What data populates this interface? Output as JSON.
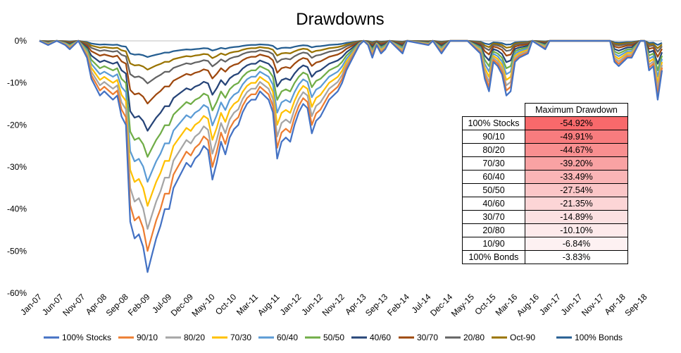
{
  "chart_data": {
    "type": "line",
    "title": "Drawdowns",
    "xlabel": "",
    "ylabel": "",
    "x_tick_labels": [
      "Jan-07",
      "Jun-07",
      "Nov-07",
      "Apr-08",
      "Sep-08",
      "Feb-09",
      "Jul-09",
      "Dec-09",
      "May-10",
      "Oct-10",
      "Mar-11",
      "Aug-11",
      "Jan-12",
      "Jun-12",
      "Nov-12",
      "Apr-13",
      "Sep-13",
      "Feb-14",
      "Jul-14",
      "Dec-14",
      "May-15",
      "Oct-15",
      "Mar-16",
      "Aug-16",
      "Jan-17",
      "Jun-17",
      "Nov-17",
      "Apr-18",
      "Sep-18"
    ],
    "y_tick_labels": [
      "0%",
      "-10%",
      "-20%",
      "-30%",
      "-40%",
      "-50%",
      "-60%"
    ],
    "ylim": [
      -60,
      0
    ],
    "legend_position": "bottom",
    "colors": [
      "#4472C4",
      "#ED7D31",
      "#A5A5A5",
      "#FFC000",
      "#5B9BD5",
      "#70AD47",
      "#264478",
      "#9E480E",
      "#636363",
      "#997300",
      "#255E91"
    ],
    "series": [
      {
        "name": "100% Stocks",
        "max_drawdown": -54.92
      },
      {
        "name": "90/10",
        "max_drawdown": -49.91
      },
      {
        "name": "80/20",
        "max_drawdown": -44.67
      },
      {
        "name": "70/30",
        "max_drawdown": -39.2
      },
      {
        "name": "60/40",
        "max_drawdown": -33.49
      },
      {
        "name": "50/50",
        "max_drawdown": -27.54
      },
      {
        "name": "40/60",
        "max_drawdown": -21.35
      },
      {
        "name": "30/70",
        "max_drawdown": -14.89
      },
      {
        "name": "20/80",
        "max_drawdown": -10.1
      },
      {
        "name": "Oct-90",
        "max_drawdown": -6.84
      },
      {
        "name": "100% Bonds",
        "max_drawdown": -3.83
      }
    ],
    "stocks_path": [
      {
        "x": "2007-01",
        "y": 0
      },
      {
        "x": "2007-03",
        "y": -1
      },
      {
        "x": "2007-05",
        "y": 0
      },
      {
        "x": "2007-07",
        "y": -1
      },
      {
        "x": "2007-08",
        "y": -2
      },
      {
        "x": "2007-10",
        "y": 0
      },
      {
        "x": "2007-12",
        "y": -4
      },
      {
        "x": "2008-01",
        "y": -9
      },
      {
        "x": "2008-02",
        "y": -11
      },
      {
        "x": "2008-03",
        "y": -13
      },
      {
        "x": "2008-04",
        "y": -12
      },
      {
        "x": "2008-05",
        "y": -13
      },
      {
        "x": "2008-06",
        "y": -14
      },
      {
        "x": "2008-07",
        "y": -13
      },
      {
        "x": "2008-08",
        "y": -18
      },
      {
        "x": "2008-09",
        "y": -20
      },
      {
        "x": "2008-10",
        "y": -43
      },
      {
        "x": "2008-11",
        "y": -47
      },
      {
        "x": "2008-12",
        "y": -46
      },
      {
        "x": "2009-01",
        "y": -49
      },
      {
        "x": "2009-02",
        "y": -55
      },
      {
        "x": "2009-03",
        "y": -51
      },
      {
        "x": "2009-04",
        "y": -47
      },
      {
        "x": "2009-05",
        "y": -44
      },
      {
        "x": "2009-06",
        "y": -40
      },
      {
        "x": "2009-07",
        "y": -40
      },
      {
        "x": "2009-08",
        "y": -35
      },
      {
        "x": "2009-09",
        "y": -33
      },
      {
        "x": "2009-10",
        "y": -31
      },
      {
        "x": "2009-11",
        "y": -29
      },
      {
        "x": "2009-12",
        "y": -30
      },
      {
        "x": "2010-01",
        "y": -28
      },
      {
        "x": "2010-02",
        "y": -27
      },
      {
        "x": "2010-03",
        "y": -25
      },
      {
        "x": "2010-04",
        "y": -26
      },
      {
        "x": "2010-05",
        "y": -33
      },
      {
        "x": "2010-06",
        "y": -29
      },
      {
        "x": "2010-07",
        "y": -24
      },
      {
        "x": "2010-08",
        "y": -27
      },
      {
        "x": "2010-09",
        "y": -23
      },
      {
        "x": "2010-10",
        "y": -21
      },
      {
        "x": "2010-11",
        "y": -20
      },
      {
        "x": "2010-12",
        "y": -17
      },
      {
        "x": "2011-01",
        "y": -15
      },
      {
        "x": "2011-02",
        "y": -14
      },
      {
        "x": "2011-03",
        "y": -14
      },
      {
        "x": "2011-04",
        "y": -12
      },
      {
        "x": "2011-05",
        "y": -13
      },
      {
        "x": "2011-06",
        "y": -14
      },
      {
        "x": "2011-07",
        "y": -17
      },
      {
        "x": "2011-08",
        "y": -28
      },
      {
        "x": "2011-09",
        "y": -24
      },
      {
        "x": "2011-10",
        "y": -23
      },
      {
        "x": "2011-11",
        "y": -24
      },
      {
        "x": "2011-12",
        "y": -20
      },
      {
        "x": "2012-01",
        "y": -17
      },
      {
        "x": "2012-02",
        "y": -15
      },
      {
        "x": "2012-03",
        "y": -16
      },
      {
        "x": "2012-04",
        "y": -22
      },
      {
        "x": "2012-05",
        "y": -19
      },
      {
        "x": "2012-06",
        "y": -18
      },
      {
        "x": "2012-07",
        "y": -16
      },
      {
        "x": "2012-08",
        "y": -14
      },
      {
        "x": "2012-09",
        "y": -13
      },
      {
        "x": "2012-10",
        "y": -12
      },
      {
        "x": "2012-11",
        "y": -10
      },
      {
        "x": "2012-12",
        "y": -7
      },
      {
        "x": "2013-01",
        "y": -5
      },
      {
        "x": "2013-02",
        "y": -3
      },
      {
        "x": "2013-03",
        "y": -1
      },
      {
        "x": "2013-04",
        "y": 0
      },
      {
        "x": "2013-05",
        "y": -1
      },
      {
        "x": "2013-06",
        "y": -4
      },
      {
        "x": "2013-07",
        "y": -1
      },
      {
        "x": "2013-08",
        "y": -3
      },
      {
        "x": "2013-09",
        "y": -2
      },
      {
        "x": "2013-10",
        "y": 0
      },
      {
        "x": "2014-01",
        "y": -3
      },
      {
        "x": "2014-02",
        "y": 0
      },
      {
        "x": "2014-07",
        "y": -1
      },
      {
        "x": "2014-08",
        "y": 0
      },
      {
        "x": "2014-10",
        "y": -3
      },
      {
        "x": "2014-12",
        "y": 0
      },
      {
        "x": "2015-04",
        "y": 0
      },
      {
        "x": "2015-06",
        "y": -2
      },
      {
        "x": "2015-07",
        "y": -3
      },
      {
        "x": "2015-08",
        "y": -9
      },
      {
        "x": "2015-09",
        "y": -12
      },
      {
        "x": "2015-10",
        "y": -5
      },
      {
        "x": "2015-11",
        "y": -6
      },
      {
        "x": "2015-12",
        "y": -8
      },
      {
        "x": "2016-01",
        "y": -13
      },
      {
        "x": "2016-02",
        "y": -12
      },
      {
        "x": "2016-03",
        "y": -5
      },
      {
        "x": "2016-04",
        "y": -4
      },
      {
        "x": "2016-06",
        "y": -3
      },
      {
        "x": "2016-07",
        "y": 0
      },
      {
        "x": "2016-10",
        "y": -2
      },
      {
        "x": "2016-11",
        "y": 0
      },
      {
        "x": "2017-02",
        "y": 0
      },
      {
        "x": "2017-05",
        "y": 0
      },
      {
        "x": "2017-10",
        "y": 0
      },
      {
        "x": "2018-01",
        "y": 0
      },
      {
        "x": "2018-02",
        "y": -5
      },
      {
        "x": "2018-03",
        "y": -6
      },
      {
        "x": "2018-04",
        "y": -5
      },
      {
        "x": "2018-05",
        "y": -4
      },
      {
        "x": "2018-06",
        "y": -4
      },
      {
        "x": "2018-07",
        "y": -2
      },
      {
        "x": "2018-08",
        "y": 0
      },
      {
        "x": "2018-09",
        "y": 0
      },
      {
        "x": "2018-10",
        "y": -7
      },
      {
        "x": "2018-11",
        "y": -6
      },
      {
        "x": "2018-12",
        "y": -14
      },
      {
        "x": "2019-01",
        "y": -7
      }
    ]
  },
  "table": {
    "header": "Maximum Drawdown",
    "rows": [
      {
        "label": "100% Stocks",
        "value": "-54.92%",
        "color": "#F8696B"
      },
      {
        "label": "90/10",
        "value": "-49.91%",
        "color": "#F87C7E"
      },
      {
        "label": "80/20",
        "value": "-44.67%",
        "color": "#F98F90"
      },
      {
        "label": "70/30",
        "value": "-39.20%",
        "color": "#F9A2A3"
      },
      {
        "label": "60/40",
        "value": "-33.49%",
        "color": "#FAB5B6"
      },
      {
        "label": "50/50",
        "value": "-27.54%",
        "color": "#FBC6C7"
      },
      {
        "label": "40/60",
        "value": "-21.35%",
        "color": "#FCD5D6"
      },
      {
        "label": "30/70",
        "value": "-14.89%",
        "color": "#FCE1E2"
      },
      {
        "label": "20/80",
        "value": "-10.10%",
        "color": "#FDEAEB"
      },
      {
        "label": "10/90",
        "value": "-6.84%",
        "color": "#FDF1F2"
      },
      {
        "label": "100% Bonds",
        "value": "-3.83%",
        "color": "#FFFFFF"
      }
    ]
  }
}
